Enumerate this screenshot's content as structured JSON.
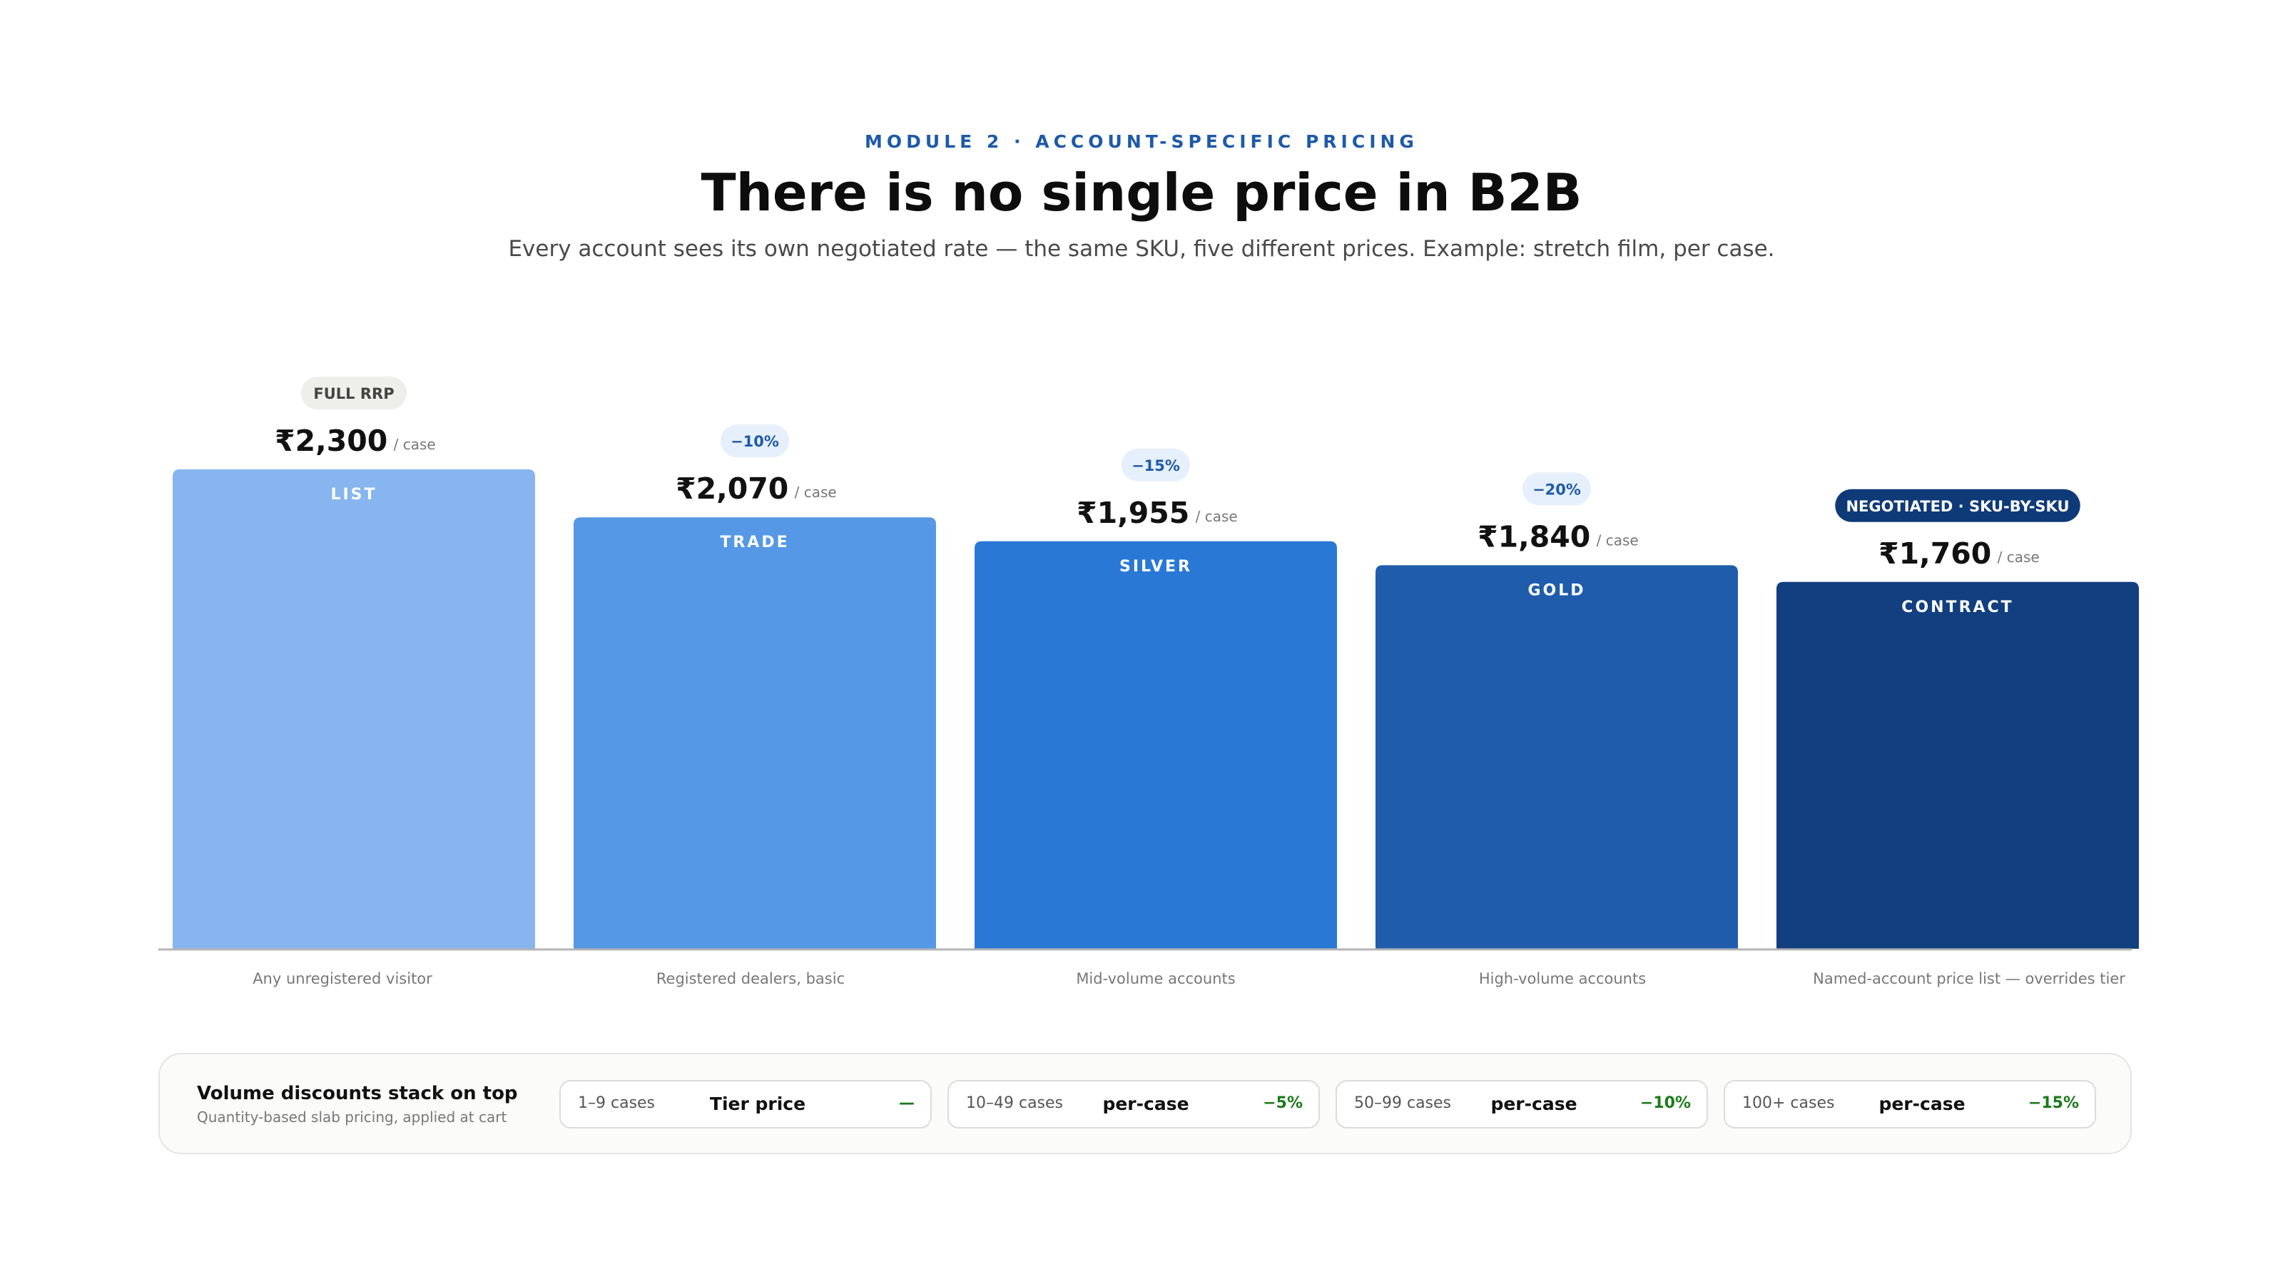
{
  "header": {
    "eyebrow": "MODULE 2 · ACCOUNT-SPECIFIC PRICING",
    "title": "There is no single price in B2B",
    "subtitle": "Every account sees its own negotiated rate — the same SKU, five different prices. Example: stretch film, per case."
  },
  "chart_data": {
    "type": "bar",
    "title": "",
    "xlabel": "",
    "ylabel": "",
    "unit": "/ case",
    "ylim": [
      0,
      2300
    ],
    "grid": false,
    "categories": [
      "LIST",
      "TRADE",
      "SILVER",
      "GOLD",
      "CONTRACT"
    ],
    "values": [
      2300,
      2070,
      1955,
      1840,
      1760
    ],
    "value_labels": [
      "₹2,300",
      "₹2,070",
      "₹1,955",
      "₹1,840",
      "₹1,760"
    ],
    "badges": [
      "FULL RRP",
      "−10%",
      "−15%",
      "−20%",
      "NEGOTIATED · SKU-BY-SKU"
    ],
    "descriptions": [
      "Any unregistered visitor",
      "Registered dealers, basic",
      "Mid-volume accounts",
      "High-volume accounts",
      "Named-account price list — overrides tier"
    ],
    "colors": [
      "#86b5ef",
      "#5598e6",
      "#2a78d6",
      "#1f5dac",
      "#113f80"
    ],
    "badge_styles": [
      {
        "bg": "#eeeeeb",
        "fg": "#444444"
      },
      {
        "bg": "#e6f0fc",
        "fg": "#1e5aa8"
      },
      {
        "bg": "#e6f0fc",
        "fg": "#1e5aa8"
      },
      {
        "bg": "#e6f0fc",
        "fg": "#1e5aa8"
      },
      {
        "bg": "#0f3a78",
        "fg": "#ffffff"
      }
    ]
  },
  "volume": {
    "heading": "Volume discounts stack on top",
    "subheading": "Quantity-based slab pricing, applied at cart",
    "slabs": [
      {
        "range": "1–9 cases",
        "type": "Tier price",
        "discount": "—"
      },
      {
        "range": "10–49 cases",
        "type": "per-case",
        "discount": "−5%"
      },
      {
        "range": "50–99 cases",
        "type": "per-case",
        "discount": "−10%"
      },
      {
        "range": "100+ cases",
        "type": "per-case",
        "discount": "−15%"
      }
    ]
  }
}
